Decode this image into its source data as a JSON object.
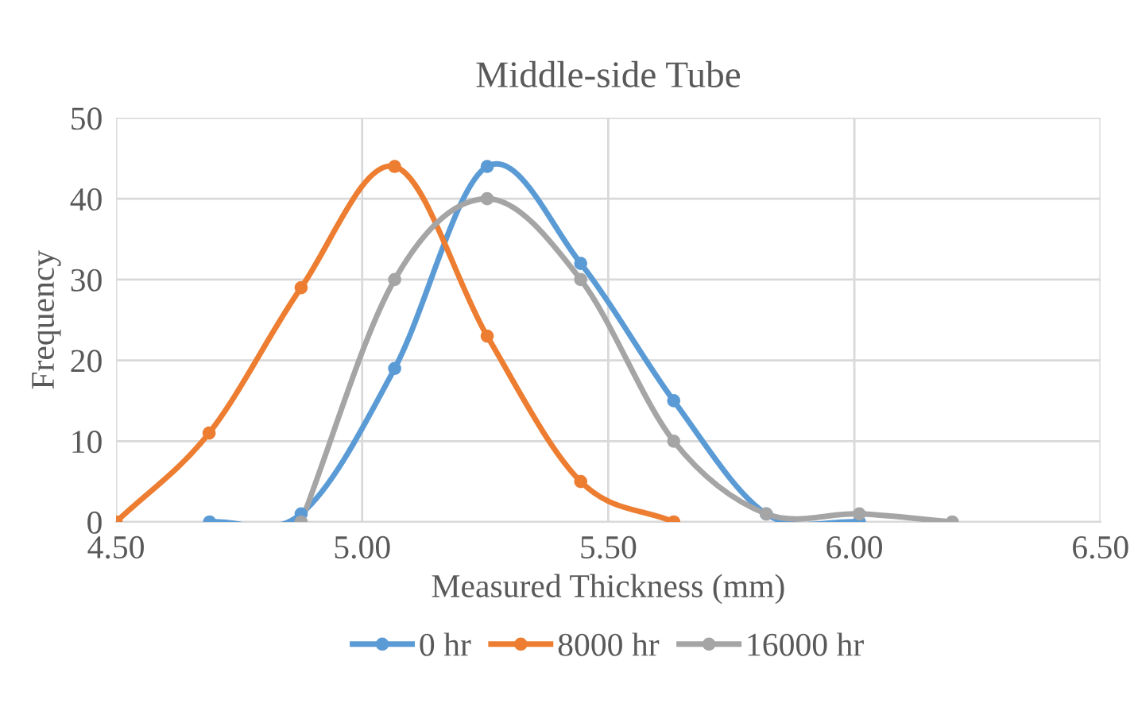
{
  "chart_data": {
    "type": "line",
    "title": "Middle-side Tube",
    "xlabel": "Measured Thickness (mm)",
    "ylabel": "Frequency",
    "xlim": [
      4.5,
      6.5
    ],
    "xticks": [
      {
        "value": 4.5,
        "label": "4.50"
      },
      {
        "value": 5.0,
        "label": "5.00"
      },
      {
        "value": 5.5,
        "label": "5.50"
      },
      {
        "value": 6.0,
        "label": "6.00"
      },
      {
        "value": 6.5,
        "label": "6.50"
      }
    ],
    "ylim": [
      0,
      50
    ],
    "yticks": [
      0,
      10,
      20,
      30,
      40,
      50
    ],
    "grid": true,
    "legend": "bottom",
    "marker": "circle",
    "line_style": "solid",
    "series": [
      {
        "name": "0 hr",
        "color": "#5b9bd5",
        "x": [
          4.69,
          4.876,
          5.066,
          5.254,
          5.444,
          5.633,
          5.821,
          6.01
        ],
        "values": [
          0,
          1,
          19,
          44,
          32,
          15,
          1,
          0
        ]
      },
      {
        "name": "8000 hr",
        "color": "#ed7d31",
        "x": [
          4.5,
          4.689,
          4.876,
          5.066,
          5.254,
          5.444,
          5.633
        ],
        "values": [
          0,
          11,
          29,
          44,
          23,
          5,
          0
        ]
      },
      {
        "name": "16000 hr",
        "color": "#a5a5a5",
        "x": [
          4.876,
          5.066,
          5.254,
          5.444,
          5.633,
          5.821,
          6.01,
          6.199
        ],
        "values": [
          0,
          30,
          40,
          30,
          10,
          1,
          1,
          0
        ]
      }
    ]
  }
}
